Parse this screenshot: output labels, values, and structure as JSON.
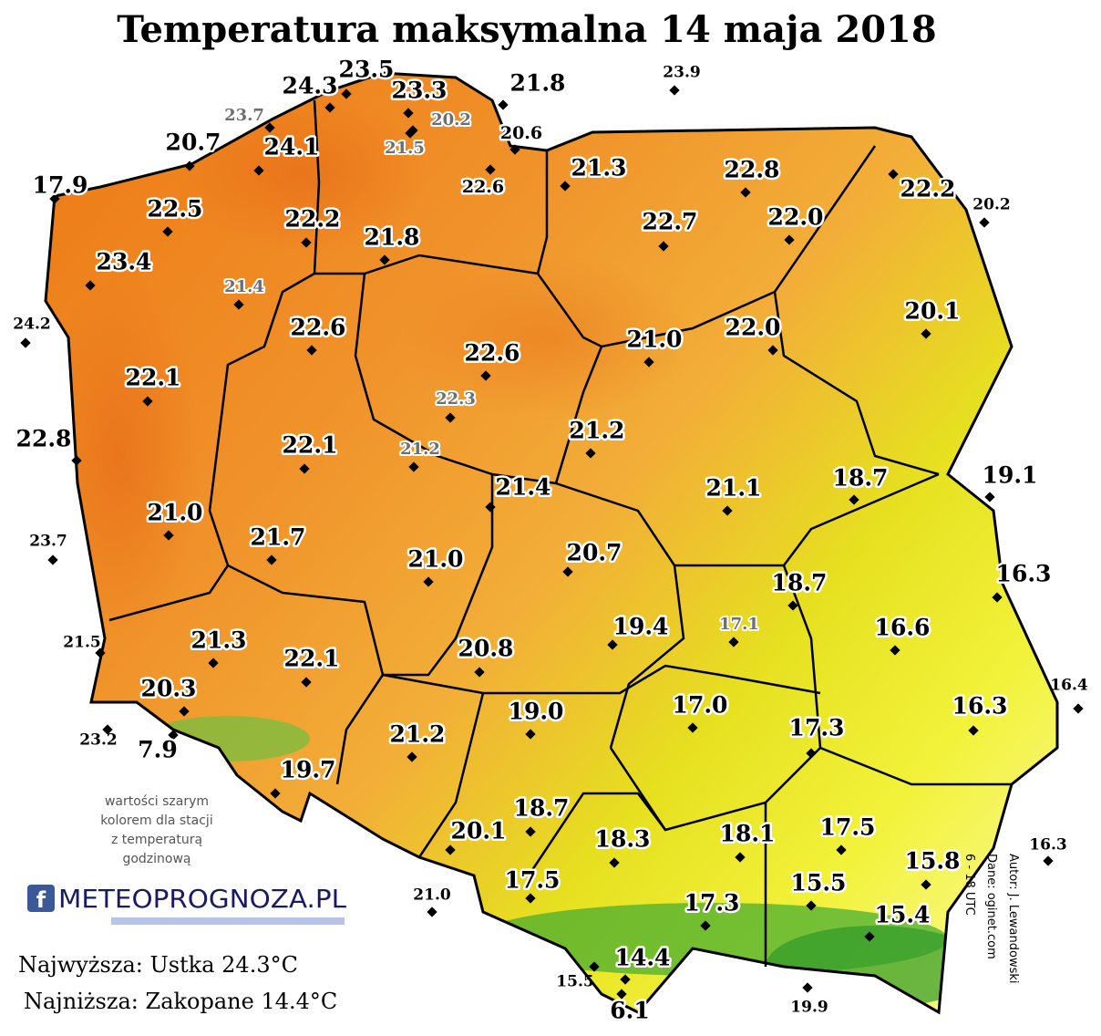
{
  "title": "Temperatura maksymalna 14 maja 2018",
  "stations": [
    "17.9",
    "20.7",
    "23.7",
    "24.3",
    "23.5",
    "24.1",
    "23.3",
    "20.2",
    "21.5",
    "21.8",
    "20.6",
    "23.9",
    "22.6",
    "21.3",
    "22.8",
    "22.2",
    "20.2",
    "22.5",
    "22.2",
    "21.8",
    "22.7",
    "22.0",
    "23.4",
    "21.4",
    "24.2",
    "22.6",
    "20.1",
    "21.0",
    "22.0",
    "22.6",
    "22.1",
    "22.3",
    "22.8",
    "22.1",
    "21.2",
    "21.2",
    "21.4",
    "21.1",
    "18.7",
    "19.1",
    "21.0",
    "21.7",
    "23.7",
    "21.0",
    "20.7",
    "16.3",
    "18.7",
    "21.5",
    "21.3",
    "17.1",
    "16.6",
    "19.4",
    "22.1",
    "20.8",
    "20.3",
    "16.4",
    "16.3",
    "17.0",
    "19.0",
    "17.3",
    "23.2",
    "7.9",
    "21.2",
    "19.7",
    "18.7",
    "17.5",
    "20.1",
    "18.3",
    "18.1",
    "16.3",
    "15.8",
    "17.5",
    "15.5",
    "21.0",
    "17.3",
    "15.4",
    "14.4",
    "15.5",
    "19.9",
    "6.1"
  ],
  "note": [
    "wartości szarym",
    "kolorem dla stacji",
    "z temperaturą",
    "godzinową"
  ],
  "logo": "METEOPROGNOZA.PL",
  "highest": "Najwyższa: Ustka 24.3°C",
  "lowest": "Najniższa: Zakopane 14.4°C",
  "credits": [
    "Autor: J. Lewandowski",
    "Dane: oginet.com",
    "6 - 18 UTC"
  ]
}
